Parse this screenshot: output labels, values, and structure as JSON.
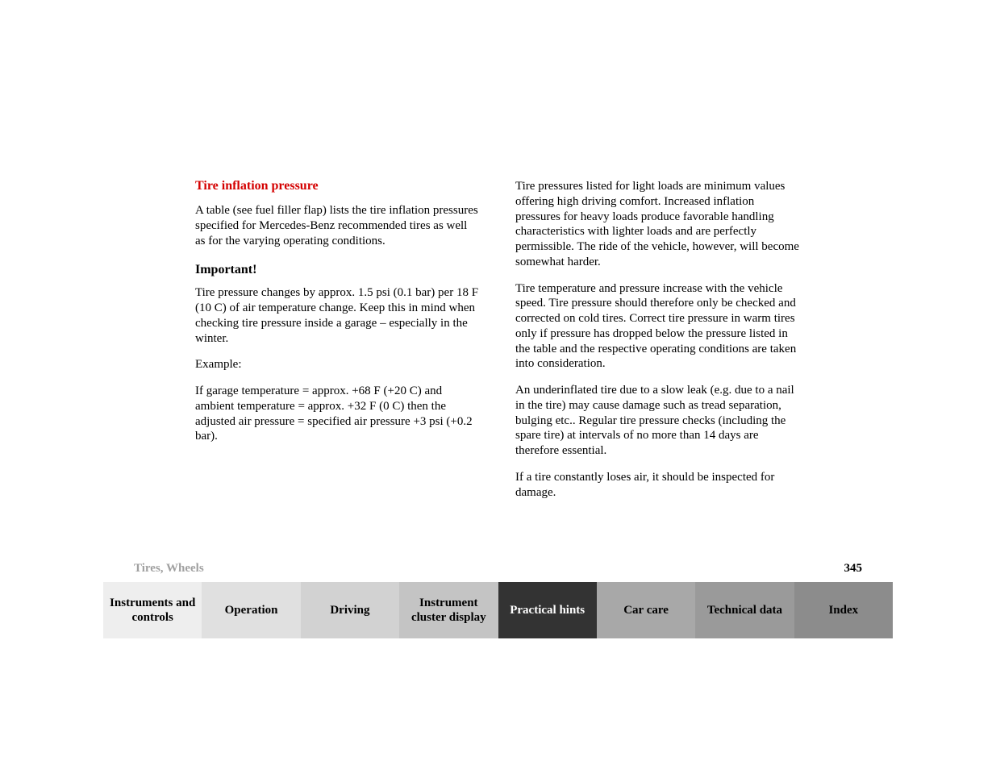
{
  "heading_red": "Tire inflation pressure",
  "left": {
    "p1": "A table (see fuel filler flap) lists the tire inflation pressures specified for Mercedes-Benz recommended tires as well as for the varying operating conditions.",
    "important_heading": "Important!",
    "p2": "Tire pressure changes by approx. 1.5 psi (0.1 bar) per 18 F (10 C) of air temperature change. Keep this in mind when checking tire pressure inside a garage – especially in the winter.",
    "p3": "Example:",
    "p4": "If garage temperature = approx. +68 F (+20 C) and ambient temperature = approx. +32 F (0 C) then the adjusted air pressure = specified air pressure +3 psi (+0.2 bar)."
  },
  "right": {
    "p1": "Tire pressures listed for light loads are minimum values offering high driving comfort. Increased inflation pressures for heavy loads produce favorable handling characteristics with lighter loads and are perfectly permissible. The ride of the vehicle, however, will become somewhat harder.",
    "p2": "Tire temperature and pressure increase with the vehicle speed. Tire pressure should therefore only be checked and corrected on cold tires. Correct tire pressure in warm tires only if pressure has dropped below the pressure listed in the table and the respective operating conditions are taken into consideration.",
    "p3": "An underinflated tire due to a slow leak (e.g. due to a nail in the tire) may cause damage such as tread separation, bulging etc.. Regular tire pressure checks (including the spare tire) at intervals of no more than 14 days are therefore essential.",
    "p4": "If a tire constantly loses air, it should be inspected for damage."
  },
  "footer": {
    "topic": "Tires, Wheels",
    "page_number": "345"
  },
  "tabs": [
    {
      "label": "Instruments and controls",
      "active": false
    },
    {
      "label": "Operation",
      "active": false
    },
    {
      "label": "Driving",
      "active": false
    },
    {
      "label": "Instrument cluster display",
      "active": false
    },
    {
      "label": "Practical hints",
      "active": true
    },
    {
      "label": "Car care",
      "active": false
    },
    {
      "label": "Technical data",
      "active": false
    },
    {
      "label": "Index",
      "active": false
    }
  ]
}
